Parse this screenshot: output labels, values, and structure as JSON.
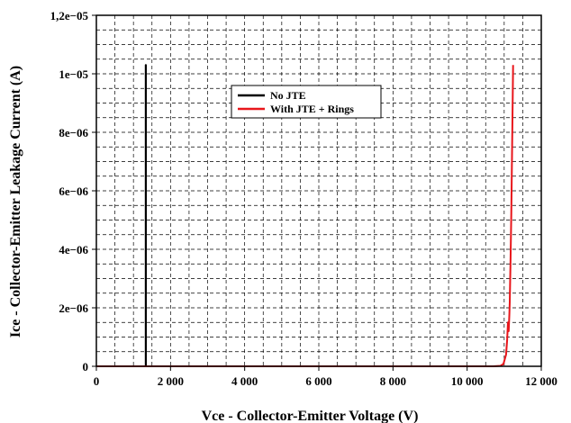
{
  "chart_data": {
    "type": "line",
    "title": "",
    "xlabel": "Vce - Collector-Emitter  Voltage (V)",
    "ylabel": "Ice - Collector-Emitter Leakage Current (A)",
    "xlim": [
      0,
      12000
    ],
    "ylim": [
      0,
      1.2e-05
    ],
    "x_ticks": [
      0,
      2000,
      4000,
      6000,
      8000,
      10000,
      12000
    ],
    "x_tick_labels": [
      "0",
      "2 000",
      "4 000",
      "6 000",
      "8 000",
      "10 000",
      "12 000"
    ],
    "y_ticks": [
      0,
      2e-06,
      4e-06,
      6e-06,
      8e-06,
      1e-05,
      1.2e-05
    ],
    "y_tick_labels": [
      "0",
      "2e−06",
      "4e−06",
      "6e−06",
      "8e−06",
      "1e−05",
      "1,2e−05"
    ],
    "grid": true,
    "legend_position": "upper-center",
    "series": [
      {
        "name": "No JTE",
        "color": "#000000",
        "x": [
          0,
          1330,
          1330,
          1335,
          1335
        ],
        "y": [
          0,
          0,
          1.03e-05,
          1.03e-05,
          0
        ]
      },
      {
        "name": "With JTE + Rings",
        "color": "#e8161b",
        "x": [
          0,
          10000,
          10700,
          10900,
          10980,
          11050,
          11080,
          11100,
          11120,
          11140,
          11150,
          11170,
          11190,
          11210,
          11230,
          11240
        ],
        "y": [
          0,
          0,
          0,
          1.5e-08,
          8e-08,
          4e-07,
          9e-07,
          1.5e-06,
          1.2e-06,
          1.8e-06,
          2.2e-06,
          3.5e-06,
          5.2e-06,
          7.2e-06,
          9.2e-06,
          1.03e-05
        ]
      }
    ]
  }
}
